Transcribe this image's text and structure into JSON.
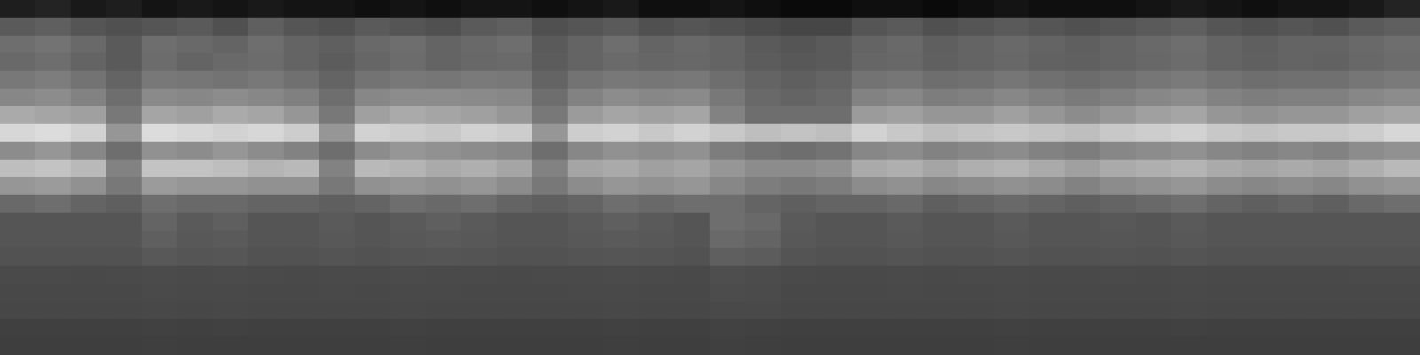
{
  "chart_data": {
    "type": "heatmap",
    "tick_labels": false,
    "value_range": [
      0,
      255
    ],
    "cells": [
      [
        30,
        35,
        25,
        30,
        20,
        25,
        20,
        25,
        20,
        20,
        15,
        20,
        15,
        20,
        20,
        15,
        20,
        25,
        15,
        15,
        20,
        15,
        10,
        10,
        15,
        15,
        10,
        15,
        20,
        15,
        15,
        15,
        20,
        25,
        20,
        15,
        20,
        20,
        25,
        35
      ],
      [
        90,
        95,
        85,
        80,
        85,
        90,
        80,
        95,
        85,
        80,
        90,
        85,
        80,
        90,
        95,
        80,
        85,
        90,
        80,
        85,
        80,
        75,
        70,
        70,
        85,
        90,
        80,
        85,
        90,
        85,
        80,
        85,
        90,
        95,
        85,
        80,
        85,
        80,
        90,
        95
      ],
      [
        110,
        115,
        105,
        90,
        110,
        105,
        100,
        110,
        100,
        95,
        105,
        110,
        100,
        105,
        110,
        90,
        100,
        110,
        100,
        105,
        100,
        90,
        85,
        90,
        100,
        105,
        95,
        100,
        105,
        100,
        95,
        100,
        105,
        110,
        100,
        95,
        100,
        100,
        105,
        110
      ],
      [
        105,
        110,
        100,
        90,
        108,
        100,
        105,
        108,
        100,
        92,
        102,
        108,
        100,
        104,
        106,
        92,
        100,
        106,
        102,
        104,
        100,
        92,
        88,
        90,
        102,
        104,
        96,
        100,
        104,
        98,
        96,
        100,
        104,
        108,
        100,
        96,
        100,
        98,
        104,
        108
      ],
      [
        120,
        125,
        115,
        100,
        120,
        118,
        115,
        120,
        112,
        100,
        115,
        120,
        118,
        122,
        120,
        100,
        115,
        120,
        118,
        120,
        110,
        100,
        95,
        100,
        115,
        118,
        110,
        112,
        118,
        112,
        108,
        112,
        118,
        122,
        115,
        110,
        112,
        112,
        118,
        122
      ],
      [
        135,
        140,
        130,
        110,
        138,
        135,
        140,
        135,
        128,
        110,
        135,
        140,
        140,
        138,
        135,
        110,
        130,
        140,
        135,
        138,
        120,
        105,
        100,
        105,
        130,
        135,
        125,
        128,
        135,
        128,
        122,
        128,
        135,
        140,
        130,
        125,
        128,
        128,
        135,
        140
      ],
      [
        170,
        165,
        160,
        120,
        165,
        160,
        170,
        165,
        150,
        120,
        160,
        170,
        165,
        160,
        150,
        120,
        155,
        165,
        160,
        165,
        130,
        110,
        110,
        110,
        155,
        160,
        150,
        150,
        160,
        150,
        140,
        150,
        160,
        165,
        150,
        145,
        150,
        150,
        160,
        165
      ],
      [
        215,
        220,
        210,
        150,
        220,
        215,
        210,
        215,
        205,
        150,
        210,
        205,
        200,
        210,
        205,
        150,
        205,
        210,
        200,
        210,
        200,
        190,
        195,
        190,
        210,
        200,
        190,
        195,
        200,
        195,
        190,
        200,
        205,
        210,
        200,
        195,
        200,
        200,
        205,
        215
      ],
      [
        140,
        150,
        135,
        110,
        145,
        140,
        150,
        140,
        130,
        110,
        140,
        150,
        145,
        140,
        135,
        110,
        135,
        145,
        140,
        145,
        125,
        115,
        110,
        115,
        135,
        140,
        130,
        135,
        140,
        130,
        125,
        135,
        140,
        145,
        135,
        130,
        135,
        130,
        140,
        145
      ],
      [
        190,
        195,
        185,
        130,
        195,
        195,
        190,
        180,
        185,
        130,
        185,
        180,
        170,
        175,
        165,
        130,
        165,
        170,
        160,
        165,
        150,
        140,
        140,
        145,
        170,
        175,
        165,
        175,
        180,
        170,
        160,
        170,
        175,
        180,
        170,
        165,
        170,
        165,
        175,
        185
      ],
      [
        150,
        155,
        145,
        120,
        155,
        150,
        150,
        145,
        145,
        120,
        145,
        150,
        145,
        150,
        140,
        120,
        140,
        150,
        145,
        150,
        135,
        125,
        120,
        125,
        140,
        145,
        135,
        140,
        145,
        140,
        130,
        140,
        145,
        150,
        140,
        135,
        140,
        135,
        145,
        150
      ],
      [
        105,
        110,
        100,
        95,
        110,
        105,
        105,
        100,
        100,
        95,
        100,
        110,
        105,
        110,
        100,
        95,
        100,
        110,
        105,
        110,
        110,
        100,
        95,
        100,
        100,
        105,
        95,
        100,
        105,
        100,
        95,
        100,
        105,
        110,
        100,
        95,
        100,
        95,
        105,
        110
      ],
      [
        85,
        85,
        85,
        85,
        100,
        90,
        95,
        85,
        85,
        90,
        85,
        90,
        95,
        90,
        85,
        85,
        90,
        95,
        90,
        85,
        110,
        105,
        90,
        85,
        85,
        90,
        85,
        85,
        90,
        85,
        85,
        88,
        85,
        90,
        85,
        85,
        85,
        85,
        85,
        85
      ],
      [
        85,
        85,
        85,
        85,
        95,
        88,
        90,
        85,
        85,
        88,
        85,
        88,
        90,
        88,
        85,
        85,
        88,
        90,
        88,
        85,
        105,
        100,
        88,
        85,
        85,
        88,
        85,
        85,
        88,
        85,
        85,
        86,
        85,
        88,
        85,
        85,
        85,
        85,
        85,
        85
      ],
      [
        82,
        82,
        82,
        82,
        88,
        85,
        86,
        82,
        82,
        84,
        82,
        84,
        85,
        84,
        82,
        82,
        84,
        85,
        84,
        82,
        95,
        92,
        84,
        82,
        82,
        84,
        82,
        82,
        84,
        82,
        82,
        83,
        82,
        84,
        82,
        82,
        82,
        82,
        82,
        82
      ],
      [
        74,
        74,
        73,
        74,
        75,
        74,
        75,
        74,
        73,
        74,
        74,
        75,
        74,
        74,
        73,
        74,
        74,
        75,
        74,
        73,
        78,
        76,
        74,
        73,
        73,
        74,
        73,
        74,
        74,
        73,
        73,
        74,
        73,
        74,
        73,
        73,
        73,
        73,
        74,
        74
      ],
      [
        72,
        72,
        72,
        72,
        74,
        73,
        73,
        72,
        72,
        73,
        72,
        73,
        73,
        72,
        72,
        72,
        73,
        73,
        72,
        72,
        76,
        75,
        72,
        72,
        72,
        73,
        72,
        72,
        73,
        72,
        72,
        72,
        72,
        73,
        72,
        72,
        72,
        72,
        72,
        72
      ],
      [
        71,
        71,
        71,
        71,
        72,
        71,
        72,
        71,
        71,
        71,
        71,
        72,
        71,
        71,
        71,
        71,
        71,
        72,
        71,
        71,
        73,
        73,
        71,
        71,
        71,
        71,
        71,
        71,
        72,
        71,
        71,
        71,
        71,
        72,
        71,
        71,
        71,
        71,
        71,
        71
      ],
      [
        64,
        64,
        64,
        64,
        65,
        64,
        65,
        64,
        64,
        64,
        64,
        65,
        64,
        64,
        64,
        64,
        64,
        65,
        64,
        64,
        66,
        65,
        64,
        64,
        64,
        64,
        64,
        64,
        65,
        64,
        64,
        64,
        64,
        65,
        64,
        64,
        64,
        64,
        64,
        64
      ],
      [
        62,
        62,
        62,
        62,
        63,
        62,
        62,
        62,
        62,
        62,
        62,
        63,
        62,
        62,
        62,
        62,
        62,
        63,
        62,
        62,
        64,
        63,
        62,
        62,
        62,
        62,
        62,
        62,
        63,
        62,
        62,
        62,
        62,
        62,
        62,
        62,
        62,
        62,
        62,
        62
      ]
    ]
  }
}
